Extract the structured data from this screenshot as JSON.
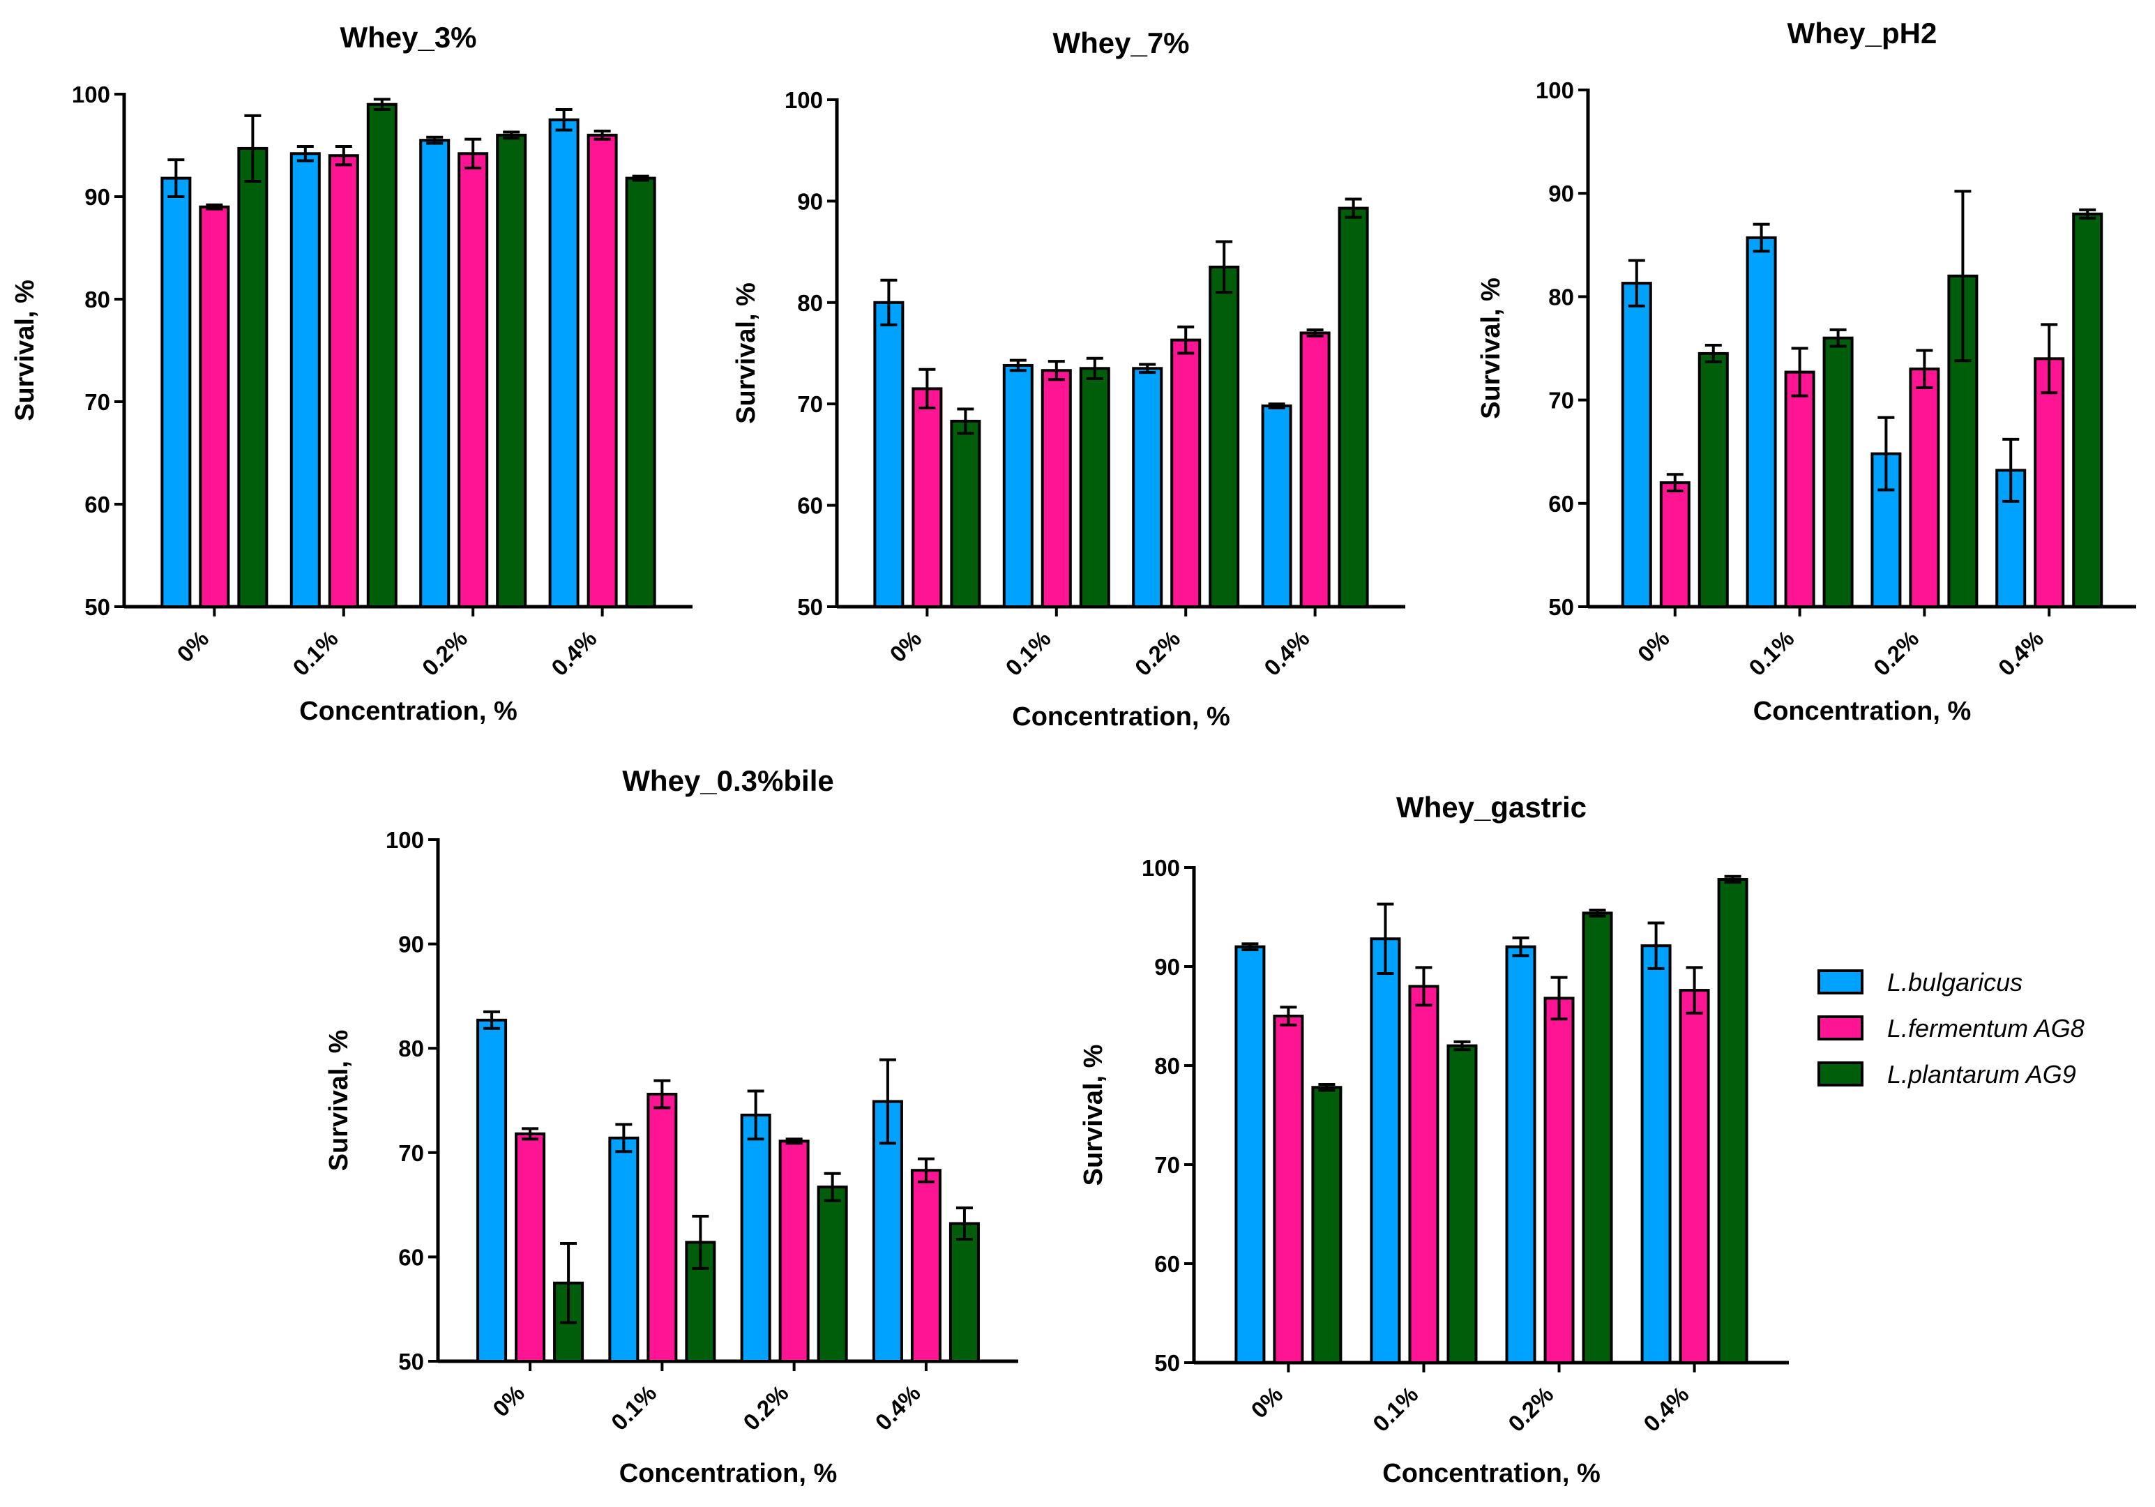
{
  "colors": {
    "L.bulgaricus": "#00A2FF",
    "L.fermentum AG8": "#FF1493",
    "L.plantarum AG9": "#005E0A"
  },
  "legend": {
    "items": [
      "L.bulgaricus",
      "L.fermentum AG8",
      "L.plantarum AG9"
    ],
    "placement": "right"
  },
  "chart_data": [
    {
      "type": "bar",
      "title": "Whey_3%",
      "xlabel": "Concentration, %",
      "ylabel": "Survival, %",
      "categories": [
        "0%",
        "0.1%",
        "0.2%",
        "0.4%"
      ],
      "ylim": [
        50,
        100
      ],
      "yticks": [
        50,
        60,
        70,
        80,
        90,
        100
      ],
      "series": [
        {
          "name": "L.bulgaricus",
          "values": [
            91.8,
            94.2,
            95.5,
            97.5
          ],
          "errors": [
            1.8,
            0.7,
            0.3,
            1.0
          ]
        },
        {
          "name": "L.fermentum AG8",
          "values": [
            89.0,
            94.0,
            94.2,
            96.0
          ],
          "errors": [
            0.2,
            0.9,
            1.4,
            0.4
          ]
        },
        {
          "name": "L.plantarum AG9",
          "values": [
            94.7,
            99.0,
            96.0,
            91.8
          ],
          "errors": [
            3.2,
            0.5,
            0.3,
            0.2
          ]
        }
      ]
    },
    {
      "type": "bar",
      "title": "Whey_7%",
      "xlabel": "Concentration, %",
      "ylabel": "Survival, %",
      "categories": [
        "0%",
        "0.1%",
        "0.2%",
        "0.4%"
      ],
      "ylim": [
        50,
        100
      ],
      "yticks": [
        50,
        60,
        70,
        80,
        90,
        100
      ],
      "series": [
        {
          "name": "L.bulgaricus",
          "values": [
            80.0,
            73.8,
            73.5,
            69.8
          ],
          "errors": [
            2.2,
            0.5,
            0.4,
            0.2
          ]
        },
        {
          "name": "L.fermentum AG8",
          "values": [
            71.5,
            73.3,
            76.3,
            77.0
          ],
          "errors": [
            1.9,
            0.9,
            1.3,
            0.3
          ]
        },
        {
          "name": "L.plantarum AG9",
          "values": [
            68.3,
            73.5,
            83.5,
            89.3
          ],
          "errors": [
            1.2,
            1.0,
            2.5,
            0.9
          ]
        }
      ]
    },
    {
      "type": "bar",
      "title": "Whey_pH2",
      "xlabel": "Concentration, %",
      "ylabel": "Survival, %",
      "categories": [
        "0%",
        "0.1%",
        "0.2%",
        "0.4%"
      ],
      "ylim": [
        50,
        100
      ],
      "yticks": [
        50,
        60,
        70,
        80,
        90,
        100
      ],
      "series": [
        {
          "name": "L.bulgaricus",
          "values": [
            81.3,
            85.7,
            64.8,
            63.2
          ],
          "errors": [
            2.2,
            1.3,
            3.5,
            3.0
          ]
        },
        {
          "name": "L.fermentum AG8",
          "values": [
            62.0,
            72.7,
            73.0,
            74.0
          ],
          "errors": [
            0.8,
            2.3,
            1.8,
            3.3
          ]
        },
        {
          "name": "L.plantarum AG9",
          "values": [
            74.5,
            76.0,
            82.0,
            88.0
          ],
          "errors": [
            0.8,
            0.8,
            8.2,
            0.4
          ]
        }
      ]
    },
    {
      "type": "bar",
      "title": "Whey_0.3%bile",
      "xlabel": "Concentration, %",
      "ylabel": "Survival, %",
      "categories": [
        "0%",
        "0.1%",
        "0.2%",
        "0.4%"
      ],
      "ylim": [
        50,
        100
      ],
      "yticks": [
        50,
        60,
        70,
        80,
        90,
        100
      ],
      "series": [
        {
          "name": "L.bulgaricus",
          "values": [
            82.7,
            71.4,
            73.6,
            74.9
          ],
          "errors": [
            0.8,
            1.3,
            2.3,
            4.0
          ]
        },
        {
          "name": "L.fermentum AG8",
          "values": [
            71.8,
            75.6,
            71.1,
            68.3
          ],
          "errors": [
            0.5,
            1.3,
            0.2,
            1.1
          ]
        },
        {
          "name": "L.plantarum AG9",
          "values": [
            57.5,
            61.4,
            66.7,
            63.2
          ],
          "errors": [
            3.8,
            2.5,
            1.3,
            1.5
          ]
        }
      ]
    },
    {
      "type": "bar",
      "title": "Whey_gastric",
      "xlabel": "Concentration, %",
      "ylabel": "Survival, %",
      "categories": [
        "0%",
        "0.1%",
        "0.2%",
        "0.4%"
      ],
      "ylim": [
        50,
        100
      ],
      "yticks": [
        50,
        60,
        70,
        80,
        90,
        100
      ],
      "series": [
        {
          "name": "L.bulgaricus",
          "values": [
            92.0,
            92.8,
            92.0,
            92.1
          ],
          "errors": [
            0.3,
            3.5,
            0.9,
            2.3
          ]
        },
        {
          "name": "L.fermentum AG8",
          "values": [
            85.0,
            88.0,
            86.8,
            87.6
          ],
          "errors": [
            0.9,
            1.9,
            2.1,
            2.3
          ]
        },
        {
          "name": "L.plantarum AG9",
          "values": [
            77.8,
            82.0,
            95.4,
            98.8
          ],
          "errors": [
            0.3,
            0.4,
            0.3,
            0.3
          ]
        }
      ]
    }
  ]
}
